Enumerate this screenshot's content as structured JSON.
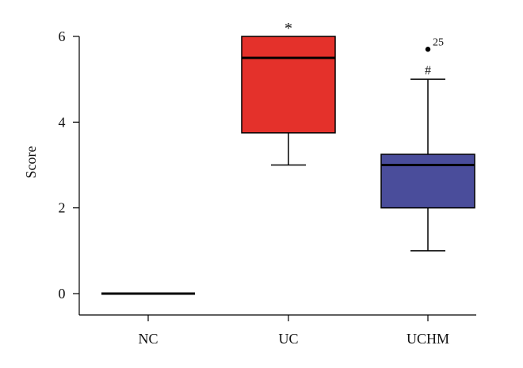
{
  "chart_data": {
    "type": "box",
    "ylabel": "Score",
    "xlabel": "",
    "ylim": [
      0,
      6
    ],
    "yticks": [
      0,
      2,
      4,
      6
    ],
    "categories": [
      "NC",
      "UC",
      "UCHM"
    ],
    "boxes": [
      {
        "category": "NC",
        "whisker_low": 0,
        "q1": 0,
        "median": 0,
        "q3": 0,
        "whisker_high": 0,
        "color": "#000000",
        "outliers": [],
        "annotation": ""
      },
      {
        "category": "UC",
        "whisker_low": 3,
        "q1": 3.75,
        "median": 5.5,
        "q3": 6,
        "whisker_high": 6,
        "color": "#e4312b",
        "outliers": [],
        "annotation": "*"
      },
      {
        "category": "UCHM",
        "whisker_low": 1,
        "q1": 2,
        "median": 3,
        "q3": 3.25,
        "whisker_high": 5,
        "color": "#4a4d9b",
        "outliers": [
          {
            "value": 5.7,
            "label": "25"
          }
        ],
        "annotation": "#"
      }
    ],
    "grid": false,
    "legend": "none"
  }
}
